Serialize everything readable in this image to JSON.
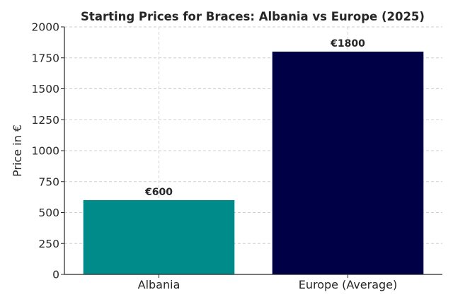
{
  "chart_data": {
    "type": "bar",
    "title": "Starting Prices for Braces: Albania vs Europe (2025)",
    "xlabel": "",
    "ylabel": "Price in €",
    "categories": [
      "Albania",
      "Europe (Average)"
    ],
    "values": [
      600,
      1800
    ],
    "data_labels": [
      "€600",
      "€1800"
    ],
    "colors": [
      "#008b8b",
      "#000047"
    ],
    "ylim": [
      0,
      2000
    ],
    "yticks": [
      0,
      250,
      500,
      750,
      1000,
      1250,
      1500,
      1750,
      2000
    ],
    "grid": true
  }
}
